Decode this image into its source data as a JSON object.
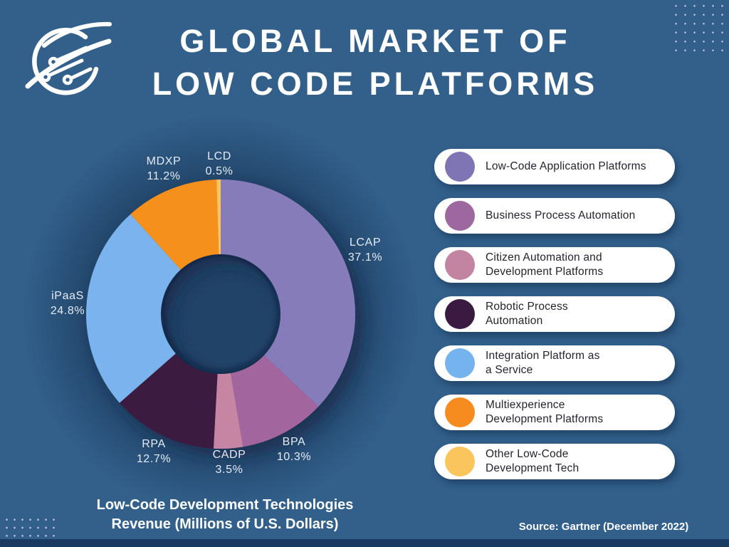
{
  "title": {
    "line1": "GLOBAL MARKET OF",
    "line2": "LOW CODE PLATFORMS"
  },
  "chart_data": {
    "type": "pie",
    "donut": true,
    "title": "Global Market of Low Code Platforms",
    "unit": "percent",
    "order": "clockwise-from-top",
    "slices": [
      {
        "label": "LCAP",
        "value": 37.1,
        "display": "37.1%",
        "color": "#867cb9",
        "legend": "Low-Code Application Platforms"
      },
      {
        "label": "BPA",
        "value": 10.3,
        "display": "10.3%",
        "color": "#a2659e",
        "legend": "Business Process Automation"
      },
      {
        "label": "CADP",
        "value": 3.5,
        "display": "3.5%",
        "color": "#c685a2",
        "legend": "Citizen Automation and Development Platforms"
      },
      {
        "label": "RPA",
        "value": 12.7,
        "display": "12.7%",
        "color": "#3a1a40",
        "legend": "Robotic Process Automation"
      },
      {
        "label": "iPaaS",
        "value": 24.8,
        "display": "24.8%",
        "color": "#7ab3ee",
        "legend": "Integration Platform as a Service"
      },
      {
        "label": "MDXP",
        "value": 11.2,
        "display": "11.2%",
        "color": "#f6901e",
        "legend": "Multiexperience Development Platforms"
      },
      {
        "label": "LCD",
        "value": 0.5,
        "display": "0.5%",
        "color": "#fac55e",
        "legend": "Other Low-Code Development Tech"
      }
    ]
  },
  "legend": {
    "items": [
      {
        "lines": [
          "Low-Code Application Platforms"
        ],
        "color": "#7f75b5"
      },
      {
        "lines": [
          "Business Process Automation"
        ],
        "color": "#9d68a0"
      },
      {
        "lines": [
          "Citizen Automation and",
          "Development Platforms"
        ],
        "color": "#c284a0"
      },
      {
        "lines": [
          "Robotic Process",
          "Automation"
        ],
        "color": "#3a1a40"
      },
      {
        "lines": [
          "Integration Platform as",
          "a Service"
        ],
        "color": "#74b3ee"
      },
      {
        "lines": [
          "Multiexperience",
          "Development Platforms"
        ],
        "color": "#f68c1f"
      },
      {
        "lines": [
          "Other Low-Code",
          "Development Tech"
        ],
        "color": "#fbc55e"
      }
    ]
  },
  "caption": {
    "line1": "Low-Code Development Technologies",
    "line2": "Revenue (Millions of U.S. Dollars)"
  },
  "source": "Source: Gartner (December 2022)",
  "colors": {
    "background": "#32608b",
    "bottom_strip": "#1b3a61",
    "dots": "#cfc6e8",
    "pill": "#ffffff",
    "title_text": "#ffffff",
    "slice_label_text": "#e3ebf5",
    "pill_text": "#23242e"
  }
}
